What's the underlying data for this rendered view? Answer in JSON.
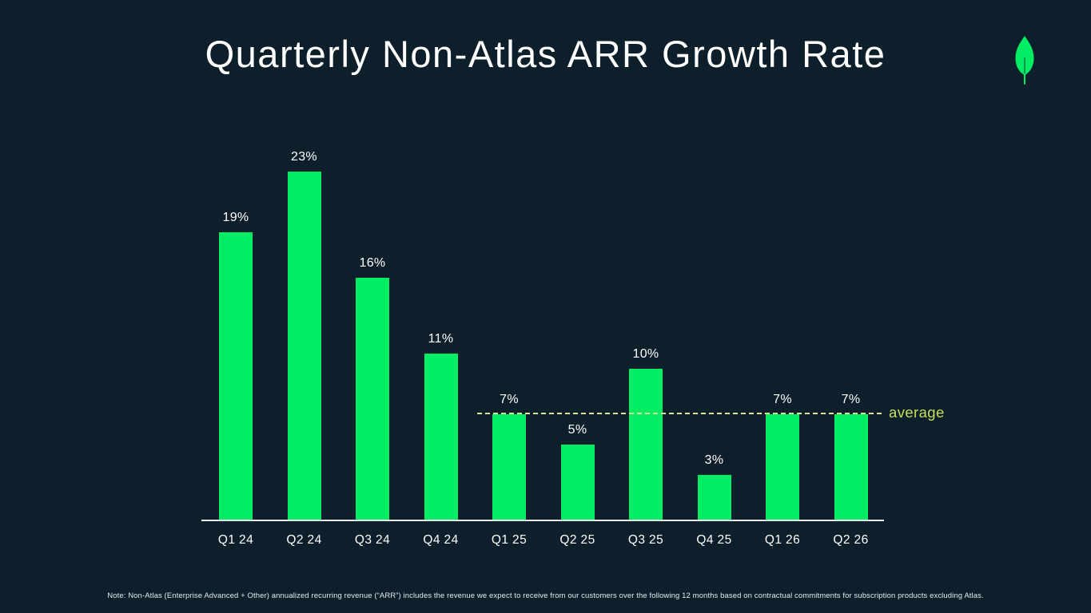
{
  "slide": {
    "title": "Quarterly Non-Atlas ARR Growth Rate",
    "logo_icon": "mongodb-leaf-icon",
    "note": "Note: Non-Atlas (Enterprise Advanced + Other) annualized recurring revenue (“ARR”) includes the revenue we expect to receive from our customers over the following 12 months based on contractual commitments for subscription products excluding Atlas.",
    "colors": {
      "background": "#0C1F2B",
      "bar": "#00ED64",
      "title_text": "#FFFFFF",
      "label_text": "#FFFFFF",
      "axis": "#E6ECEF",
      "average_line": "#DDE79A",
      "average_text": "#C9DE59",
      "note_text": "#E4EBEF",
      "leaf": "#00ED64"
    }
  },
  "chart_data": {
    "type": "bar",
    "title": "Quarterly Non-Atlas ARR Growth Rate",
    "categories": [
      "Q1 24",
      "Q2 24",
      "Q3 24",
      "Q4 24",
      "Q1 25",
      "Q2 25",
      "Q3 25",
      "Q4 25",
      "Q1 26",
      "Q2 26"
    ],
    "values": [
      19,
      23,
      16,
      11,
      7,
      5,
      10,
      3,
      7,
      7
    ],
    "value_labels": [
      "19%",
      "23%",
      "16%",
      "11%",
      "7%",
      "5%",
      "10%",
      "3%",
      "7%",
      "7%"
    ],
    "average_line": {
      "label": "average",
      "value": 7
    },
    "xlabel": "",
    "ylabel": "",
    "ylim": [
      0,
      25
    ],
    "grid": false,
    "legend": false,
    "y_axis_shown": false,
    "x_axis_shown": true
  }
}
